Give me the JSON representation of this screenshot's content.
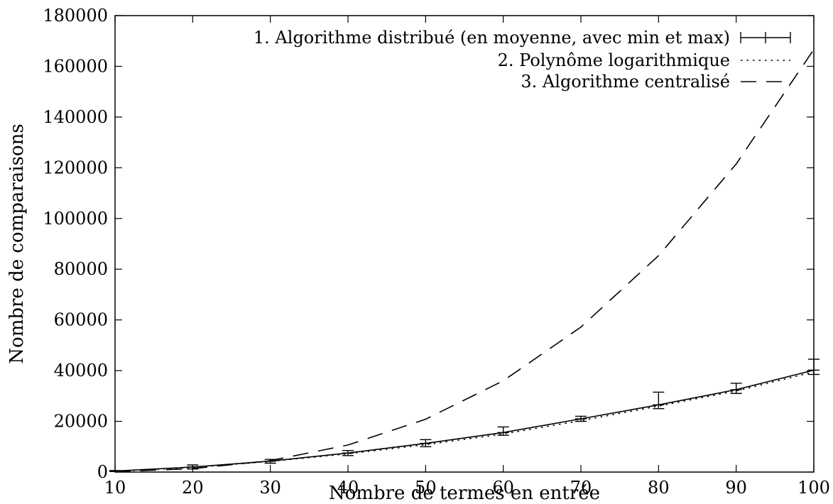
{
  "chart_data": {
    "type": "line",
    "title": "",
    "xlabel": "Nombre de termes en entrée",
    "ylabel": "Nombre de comparaisons",
    "xlim": [
      10,
      100
    ],
    "ylim": [
      0,
      180000
    ],
    "xticks": [
      10,
      20,
      30,
      40,
      50,
      60,
      70,
      80,
      90,
      100
    ],
    "yticks": [
      0,
      20000,
      40000,
      60000,
      80000,
      100000,
      120000,
      140000,
      160000,
      180000
    ],
    "grid": false,
    "legend_position": "top-right",
    "series": [
      {
        "name": "1. Algorithme distribué (en moyenne, avec min et max)",
        "style": "solid-errorbars",
        "x": [
          10,
          20,
          30,
          40,
          50,
          60,
          70,
          80,
          90,
          100
        ],
        "y": [
          400,
          2000,
          4300,
          7500,
          11300,
          15600,
          21000,
          26500,
          32500,
          40200
        ],
        "ymin": [
          200,
          1200,
          3500,
          6500,
          10000,
          14500,
          20000,
          25000,
          31000,
          38500
        ],
        "ymax": [
          600,
          2800,
          5000,
          8500,
          12800,
          17800,
          22000,
          31500,
          35000,
          44500
        ]
      },
      {
        "name": "2. Polynôme logarithmique",
        "style": "dotted",
        "x": [
          10,
          20,
          30,
          40,
          50,
          60,
          70,
          80,
          90,
          100
        ],
        "y": [
          300,
          1800,
          4200,
          7200,
          10800,
          15000,
          20300,
          26000,
          32000,
          39500
        ]
      },
      {
        "name": "3. Algorithme centralisé",
        "style": "dashed",
        "x": [
          10,
          20,
          30,
          40,
          50,
          60,
          70,
          80,
          90,
          100
        ],
        "y": [
          166,
          1333,
          4500,
          10667,
          20833,
          36000,
          57167,
          85333,
          121500,
          166667
        ]
      }
    ]
  }
}
